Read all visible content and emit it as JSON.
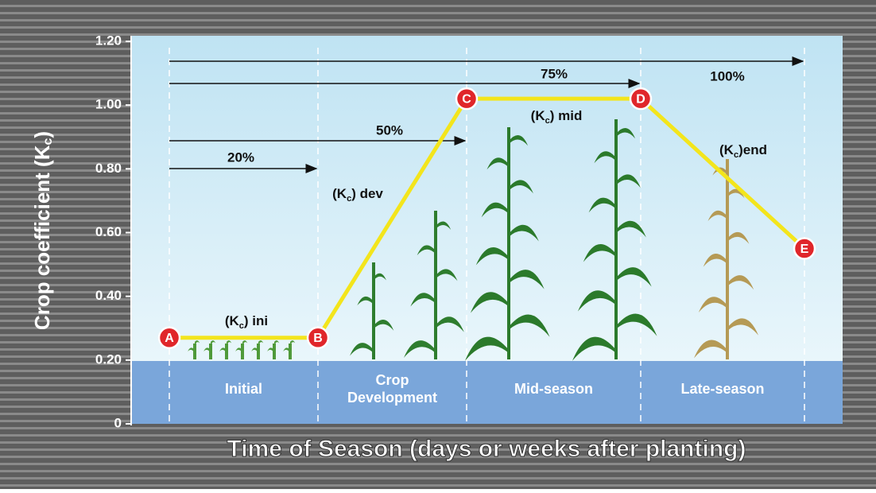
{
  "chart_data": {
    "type": "line",
    "y_label": {
      "prefix": "Crop coefficient (K",
      "sub": "c",
      "suffix": ")"
    },
    "x_label": "Time of Season (days or weeks after planting)",
    "ylim": [
      0,
      1.2
    ],
    "yticks": [
      0,
      {
        "value": 0.2,
        "label": "0.20"
      },
      {
        "value": 0.4,
        "label": "0.40"
      },
      {
        "value": 0.6,
        "label": "0.60"
      },
      {
        "value": 0.8,
        "label": "0.80"
      },
      {
        "value": 1.0,
        "label": "1.00"
      },
      {
        "value": 1.2,
        "label": "1.20"
      }
    ],
    "series": [
      {
        "color": "#f3e51c",
        "values": [
          0.27,
          0.27,
          1.02,
          1.02,
          0.55
        ],
        "point_labels": [
          "A",
          "B",
          "C",
          "D",
          "E"
        ]
      }
    ],
    "stages": [
      [
        "Initial"
      ],
      [
        "Crop",
        "Development"
      ],
      [
        "Mid-season"
      ],
      [
        "Late-season"
      ]
    ],
    "progress": [
      "20%",
      "50%",
      "75%",
      "100%"
    ],
    "kc_labels": [
      {
        "prefix": "(K",
        "sub": "c",
        "suffix": ") ini"
      },
      {
        "prefix": "(K",
        "sub": "c",
        "suffix": ") dev"
      },
      {
        "prefix": "(K",
        "sub": "c",
        "suffix": ") mid"
      },
      {
        "prefix": "(K",
        "sub": "c",
        "suffix": ")end"
      }
    ]
  }
}
